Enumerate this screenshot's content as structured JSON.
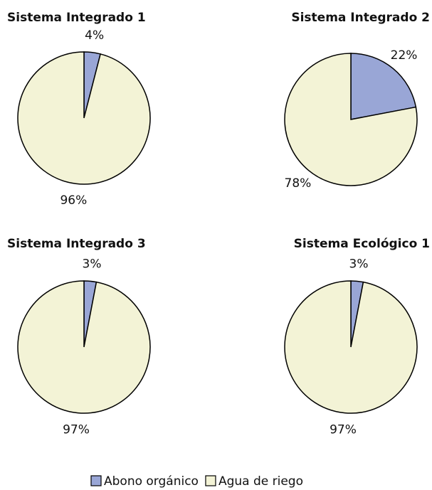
{
  "chart_data": [
    {
      "type": "pie",
      "title": "Sistema Integrado 1",
      "categories": [
        "Abono orgánico",
        "Agua de riego"
      ],
      "values": [
        4,
        96
      ],
      "value_labels": [
        "4%",
        "96%"
      ],
      "colors": [
        "#99a6d6",
        "#f3f3d6"
      ]
    },
    {
      "type": "pie",
      "title": "Sistema Integrado 2",
      "categories": [
        "Abono orgánico",
        "Agua de riego"
      ],
      "values": [
        22,
        78
      ],
      "value_labels": [
        "22%",
        "78%"
      ],
      "colors": [
        "#99a6d6",
        "#f3f3d6"
      ]
    },
    {
      "type": "pie",
      "title": "Sistema Integrado 3",
      "categories": [
        "Abono orgánico",
        "Agua de riego"
      ],
      "values": [
        3,
        97
      ],
      "value_labels": [
        "3%",
        "97%"
      ],
      "colors": [
        "#99a6d6",
        "#f3f3d6"
      ]
    },
    {
      "type": "pie",
      "title": "Sistema Ecológico 1",
      "categories": [
        "Abono orgánico",
        "Agua de riego"
      ],
      "values": [
        3,
        97
      ],
      "value_labels": [
        "3%",
        "97%"
      ],
      "colors": [
        "#99a6d6",
        "#f3f3d6"
      ]
    }
  ]
}
